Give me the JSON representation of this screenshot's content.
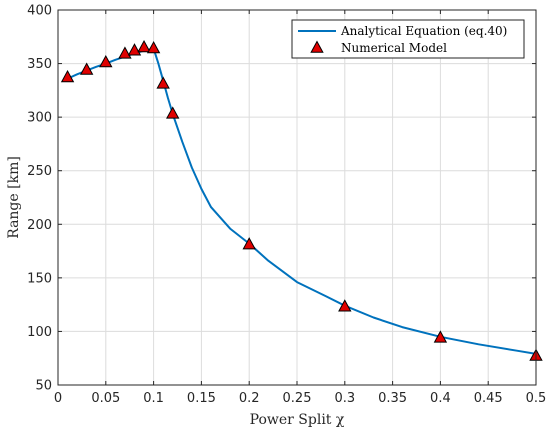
{
  "chart_data": {
    "type": "line",
    "xlabel": "Power Split χ",
    "ylabel": "Range [km]",
    "xlim": [
      0,
      0.5
    ],
    "ylim": [
      50,
      400
    ],
    "xticks": [
      0,
      0.05,
      0.1,
      0.15,
      0.2,
      0.25,
      0.3,
      0.35,
      0.4,
      0.45,
      0.5
    ],
    "xtick_labels": [
      "0",
      "0.05",
      "0.1",
      "0.15",
      "0.2",
      "0.25",
      "0.3",
      "0.35",
      "0.4",
      "0.45",
      "0.5"
    ],
    "yticks": [
      50,
      100,
      150,
      200,
      250,
      300,
      350,
      400
    ],
    "ytick_labels": [
      "50",
      "100",
      "150",
      "200",
      "250",
      "300",
      "350",
      "400"
    ],
    "grid": true,
    "legend_position": "top-right",
    "series": [
      {
        "name": "Analytical Equation (eq.40)",
        "kind": "line",
        "color": "#0072BD",
        "x": [
          0.01,
          0.02,
          0.03,
          0.04,
          0.05,
          0.06,
          0.07,
          0.08,
          0.09,
          0.1,
          0.105,
          0.11,
          0.115,
          0.12,
          0.13,
          0.14,
          0.15,
          0.16,
          0.18,
          0.2,
          0.22,
          0.25,
          0.28,
          0.3,
          0.33,
          0.36,
          0.4,
          0.44,
          0.48,
          0.5
        ],
        "y": [
          336,
          340,
          343.5,
          347,
          350,
          353.5,
          356.5,
          359.5,
          362,
          364,
          350,
          334,
          318,
          303,
          277,
          253,
          233,
          216,
          196,
          182,
          166,
          146,
          133,
          124,
          113,
          104,
          95,
          88,
          82,
          79
        ]
      },
      {
        "name": "Numerical Model",
        "kind": "scatter",
        "marker": "triangle",
        "color": "#E00000",
        "x": [
          0.01,
          0.03,
          0.05,
          0.07,
          0.08,
          0.09,
          0.1,
          0.11,
          0.12,
          0.2,
          0.3,
          0.4,
          0.5
        ],
        "y": [
          337,
          344,
          351,
          359,
          362,
          365,
          364,
          331,
          303,
          181,
          123,
          94,
          77
        ]
      }
    ]
  }
}
